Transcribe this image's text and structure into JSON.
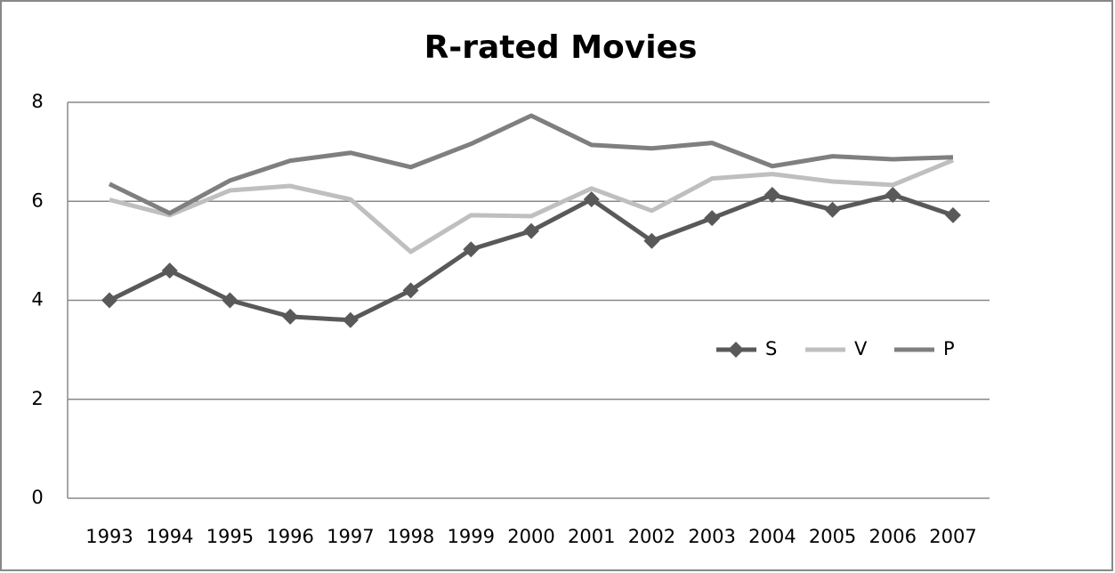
{
  "chart_data": {
    "type": "line",
    "title": "R-rated Movies",
    "categories": [
      "1993",
      "1994",
      "1995",
      "1996",
      "1997",
      "1998",
      "1999",
      "2000",
      "2001",
      "2002",
      "2003",
      "2004",
      "2005",
      "2006",
      "2007"
    ],
    "series": [
      {
        "name": "S",
        "color": "#595959",
        "marker": "diamond",
        "values": [
          4.0,
          4.6,
          4.0,
          3.67,
          3.6,
          4.2,
          5.03,
          5.4,
          6.04,
          5.2,
          5.66,
          6.13,
          5.83,
          6.13,
          5.72
        ]
      },
      {
        "name": "V",
        "color": "#bfbfbf",
        "values": [
          6.03,
          5.72,
          6.22,
          6.31,
          6.04,
          4.98,
          5.72,
          5.7,
          6.26,
          5.81,
          6.46,
          6.55,
          6.4,
          6.33,
          6.83
        ]
      },
      {
        "name": "P",
        "color": "#7f7f7f",
        "values": [
          6.35,
          5.76,
          6.42,
          6.82,
          6.98,
          6.69,
          7.16,
          7.73,
          7.14,
          7.07,
          7.18,
          6.71,
          6.91,
          6.85,
          6.89
        ]
      }
    ],
    "ylim": [
      0,
      8
    ],
    "yticks": [
      0,
      2,
      4,
      6,
      8
    ],
    "grid": true,
    "legend": "right"
  }
}
